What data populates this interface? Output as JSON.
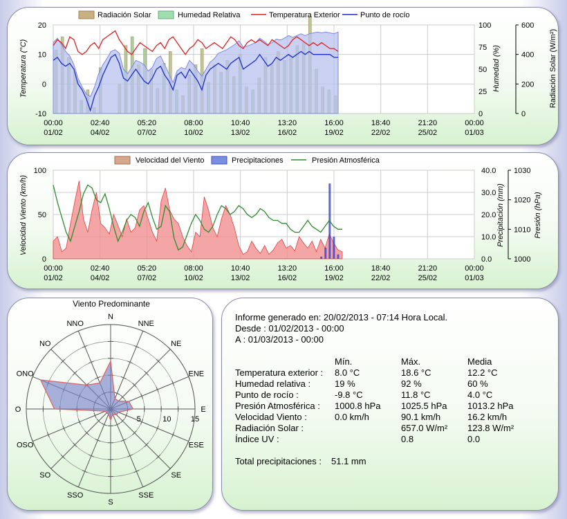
{
  "chart_data": [
    {
      "type": "line",
      "legend": [
        "Radiación Solar",
        "Humedad Relativa",
        "Temperatura Exterior",
        "Punto de rocío"
      ],
      "y_left": {
        "label": "Temperatura (°C)",
        "ticks": [
          "20",
          "10",
          "0",
          "-10"
        ],
        "ylim": [
          -10,
          20
        ]
      },
      "y_right1": {
        "label": "Humedad (%)",
        "ticks": [
          "100",
          "75",
          "50",
          "25",
          "0"
        ],
        "ylim": [
          0,
          100
        ]
      },
      "y_right2": {
        "label": "Radiación Solar (W/m²)",
        "ticks": [
          "600",
          "400",
          "200",
          "0"
        ],
        "ylim": [
          0,
          600
        ]
      },
      "x_ticks": [
        {
          "time": "00:00",
          "date": "01/02"
        },
        {
          "time": "02:40",
          "date": "04/02"
        },
        {
          "time": "05:20",
          "date": "07/02"
        },
        {
          "time": "08:00",
          "date": "10/02"
        },
        {
          "time": "10:40",
          "date": "13/02"
        },
        {
          "time": "13:20",
          "date": "16/02"
        },
        {
          "time": "16:00",
          "date": "19/02"
        },
        {
          "time": "18:40",
          "date": "22/02"
        },
        {
          "time": "21:20",
          "date": "25/02"
        },
        {
          "time": "00:00",
          "date": "01/03"
        }
      ],
      "temperature": [
        13,
        15,
        14,
        12,
        16,
        15,
        11,
        10,
        11,
        13,
        14,
        12,
        15,
        16,
        17,
        18,
        15,
        13,
        11,
        10,
        12,
        14,
        13,
        12,
        11,
        13,
        14,
        12,
        15,
        16,
        14,
        12,
        10,
        12,
        13,
        15,
        14,
        12,
        13,
        14,
        13,
        12,
        14,
        16,
        15,
        13,
        12,
        14,
        15,
        14,
        15,
        14,
        13,
        15,
        14,
        13,
        12,
        13,
        15,
        16,
        15,
        14,
        13,
        14,
        13,
        14,
        13,
        12,
        12,
        11
      ],
      "dew_point": [
        8,
        9,
        7,
        6,
        7,
        5,
        0,
        -2,
        -5,
        -9,
        -4,
        -1,
        3,
        6,
        9,
        10,
        7,
        2,
        1,
        3,
        5,
        3,
        1,
        0,
        2,
        5,
        6,
        3,
        1,
        -2,
        3,
        4,
        2,
        5,
        3,
        1,
        -2,
        3,
        5,
        6,
        7,
        6,
        5,
        7,
        8,
        9,
        5,
        6,
        7,
        8,
        10,
        8,
        6,
        7,
        9,
        8,
        9,
        10,
        9,
        10,
        11,
        10,
        11,
        10,
        10,
        10,
        10,
        10,
        9,
        9
      ],
      "humidity": [
        80,
        85,
        78,
        70,
        65,
        55,
        40,
        30,
        22,
        19,
        30,
        45,
        55,
        62,
        70,
        72,
        68,
        50,
        45,
        52,
        60,
        58,
        55,
        48,
        52,
        62,
        65,
        55,
        45,
        35,
        48,
        52,
        50,
        60,
        55,
        48,
        42,
        50,
        58,
        62,
        68,
        70,
        72,
        75,
        78,
        82,
        75,
        76,
        78,
        80,
        85,
        82,
        78,
        80,
        84,
        83,
        85,
        88,
        86,
        88,
        90,
        88,
        90,
        91,
        92,
        91,
        92,
        91,
        90,
        92
      ],
      "solar_radiation": [
        430,
        520,
        380,
        280,
        90,
        160,
        40,
        310,
        0,
        0,
        200,
        460,
        520,
        330,
        440,
        300,
        170,
        340,
        420,
        160,
        120,
        260,
        330,
        440,
        210,
        330,
        280,
        360,
        250,
        400,
        180,
        160,
        240,
        380,
        330,
        420,
        360,
        390,
        460,
        480,
        657,
        300,
        180,
        160,
        120
      ],
      "solar_label": "Radiación Solar",
      "humidity_label": "Humedad Relativa",
      "temperature_label": "Temperatura Exterior",
      "dew_label": "Punto de rocío"
    },
    {
      "type": "line",
      "legend": [
        "Velocidad del Viento",
        "Precipitaciones",
        "Presión Atmosférica"
      ],
      "y_left": {
        "label": "Velocidad Viento (km/h)",
        "ticks": [
          "100",
          "50",
          "0"
        ],
        "ylim": [
          0,
          100
        ]
      },
      "y_right1": {
        "label": "Precipitación (mm)",
        "ticks": [
          "40.0",
          "30.0",
          "20.0",
          "10.0",
          "0.0"
        ],
        "ylim": [
          0,
          40
        ]
      },
      "y_right2": {
        "label": "Presión (hPa)",
        "ticks": [
          "1030",
          "1020",
          "1010",
          "1000"
        ],
        "ylim": [
          1000,
          1030
        ]
      },
      "x_ticks": [
        {
          "time": "00:00",
          "date": "01/02"
        },
        {
          "time": "02:40",
          "date": "04/02"
        },
        {
          "time": "05:20",
          "date": "07/02"
        },
        {
          "time": "08:00",
          "date": "10/02"
        },
        {
          "time": "10:40",
          "date": "13/02"
        },
        {
          "time": "13:20",
          "date": "16/02"
        },
        {
          "time": "16:00",
          "date": "19/02"
        },
        {
          "time": "18:40",
          "date": "22/02"
        },
        {
          "time": "21:20",
          "date": "25/02"
        },
        {
          "time": "00:00",
          "date": "01/03"
        }
      ],
      "wind_speed": [
        20,
        25,
        8,
        12,
        40,
        65,
        88,
        45,
        30,
        55,
        75,
        40,
        35,
        28,
        50,
        38,
        25,
        45,
        30,
        35,
        55,
        60,
        45,
        30,
        20,
        65,
        80,
        55,
        45,
        40,
        25,
        15,
        8,
        30,
        25,
        70,
        55,
        35,
        25,
        45,
        60,
        50,
        35,
        15,
        5,
        8,
        20,
        12,
        6,
        15,
        5,
        10,
        18,
        22,
        12,
        15,
        9,
        25,
        18,
        12,
        20,
        8,
        22,
        12,
        28,
        18,
        10,
        8
      ],
      "pressure": [
        1025,
        1019,
        1014,
        1009,
        1006,
        1011,
        1016,
        1022,
        1025,
        1024,
        1020,
        1019,
        1022,
        1017,
        1011,
        1006,
        1009,
        1013,
        1015,
        1014,
        1011,
        1016,
        1019,
        1014,
        1010,
        1011,
        1018,
        1016,
        1007,
        1003,
        1004,
        1008,
        1012,
        1015,
        1013,
        1010,
        1009,
        1011,
        1015,
        1018,
        1017,
        1015,
        1016,
        1018,
        1017,
        1015,
        1014,
        1015,
        1017,
        1016,
        1014,
        1013,
        1013,
        1012,
        1012,
        1010,
        1009,
        1009,
        1011,
        1013,
        1011,
        1010,
        1009,
        1011,
        1013,
        1011,
        1010,
        1010
      ],
      "precipitation": [
        0,
        0,
        0,
        0,
        0,
        0,
        0,
        0,
        0,
        0,
        0,
        0,
        0,
        0,
        0,
        0,
        0,
        0,
        0,
        0,
        0,
        0,
        0,
        0,
        0,
        0,
        0,
        0,
        0,
        0,
        0,
        0,
        0,
        0,
        0,
        0,
        0,
        0,
        0,
        0,
        0,
        0,
        0,
        0,
        0,
        0,
        0,
        0,
        0,
        0,
        0,
        0,
        0,
        0,
        0,
        0,
        0,
        0,
        0,
        0,
        0,
        0,
        0,
        0,
        1,
        5,
        34,
        10,
        2,
        0
      ],
      "wind_label": "Velocidad del Viento",
      "precip_label": "Precipitaciones",
      "pressure_label": "Presión Atmosférica"
    },
    {
      "type": "radar",
      "title": "Viento Predominante",
      "directions": [
        "N",
        "NNE",
        "NE",
        "ENE",
        "E",
        "ESE",
        "SE",
        "SSE",
        "S",
        "SSO",
        "SO",
        "OSO",
        "O",
        "ONO",
        "NO",
        "NNO"
      ],
      "values": [
        8.5,
        2,
        2,
        3.5,
        4,
        1.5,
        1.5,
        1,
        2,
        1,
        1,
        1,
        10,
        13.5,
        6,
        5
      ],
      "radial_ticks": [
        "5",
        "10",
        "15"
      ],
      "rmax": 15
    }
  ],
  "report": {
    "line1": "Informe generado en: 20/02/2013 - 07:14 Hora Local.",
    "line2": "Desde : 01/02/2013 - 00:00",
    "line3": "A : 01/03/2013 - 00:00",
    "headers": [
      "Mín.",
      "Máx.",
      "Media"
    ],
    "rows": [
      {
        "label": "Temperatura exterior :",
        "min": "8.0 °C",
        "max": "18.6 °C",
        "avg": "12.2 °C"
      },
      {
        "label": "Humedad relativa :",
        "min": "19 %",
        "max": "92 %",
        "avg": "60 %"
      },
      {
        "label": "Punto de rocío :",
        "min": "-9.8 °C",
        "max": "11.8 °C",
        "avg": "4.0 °C"
      },
      {
        "label": "Presión Atmosférica :",
        "min": "1000.8 hPa",
        "max": "1025.5 hPa",
        "avg": "1013.2 hPa"
      },
      {
        "label": "Velocidad Viento :",
        "min": "0.0 km/h",
        "max": "90.1 km/h",
        "avg": "16.2 km/h"
      },
      {
        "label": "Radiación Solar :",
        "min": "",
        "max": "657.0 W/m²",
        "avg": "123.8 W/m²"
      },
      {
        "label": "Índice UV :",
        "min": "",
        "max": "0.8",
        "avg": "0.0"
      }
    ],
    "total_label": "Total precipitaciones :",
    "total_value": "51.1 mm"
  },
  "colors": {
    "solar": "#a2c48a",
    "solar_edge": "#b8906a",
    "humidity": "#b8c2ee",
    "humidity_edge": "#7c8ae0",
    "temperature": "#e02020",
    "dew": "#1c2ec8",
    "wind": "#f08888",
    "wind_edge": "#e04040",
    "precip": "#3040d8",
    "pressure": "#2e8b2e",
    "rose_fill": "#7b86c8",
    "rose_edge": "#e06060"
  }
}
